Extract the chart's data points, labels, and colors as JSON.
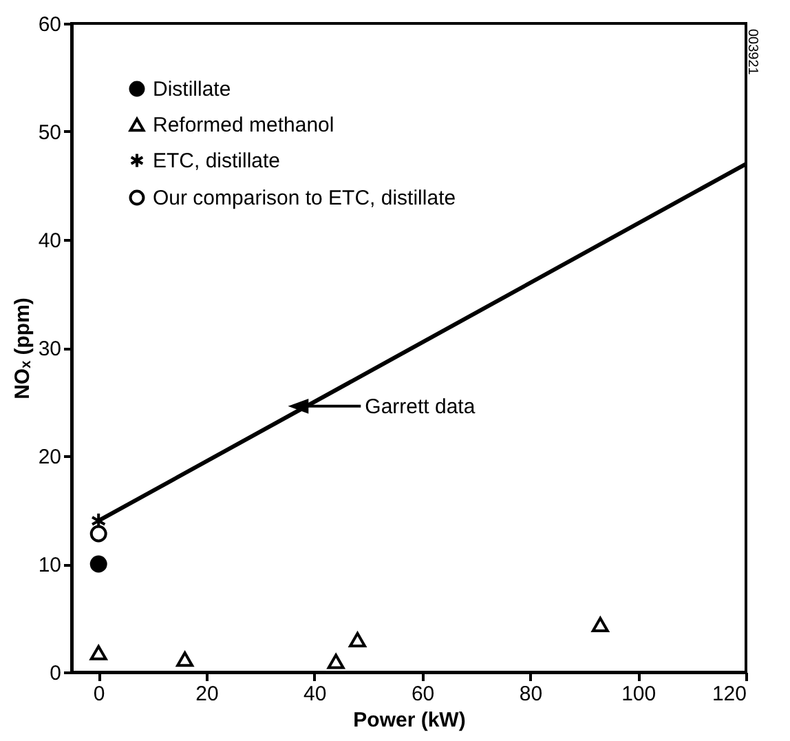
{
  "chart_data": {
    "type": "scatter",
    "xlabel": "Power (kW)",
    "ylabel": "NOₓ (ppm)",
    "xlim": [
      -5,
      120
    ],
    "xticks": [
      0,
      20,
      40,
      60,
      80,
      100,
      120
    ],
    "ylim": [
      0,
      60
    ],
    "yticks": [
      0,
      10,
      20,
      30,
      40,
      50,
      60
    ],
    "grid": false,
    "legend": "top left",
    "series": [
      {
        "type": "line",
        "color": "#000000",
        "x": [
          0,
          120
        ],
        "values": [
          14,
          47
        ],
        "marker": "none"
      },
      {
        "name": "Distillate",
        "color": "#000000",
        "marker": "circle",
        "x": [
          0
        ],
        "values": [
          10
        ]
      },
      {
        "name": "Reformed methanol",
        "color": "#000000",
        "marker": "triangle",
        "x": [
          0,
          16,
          44,
          48,
          93
        ],
        "values": [
          1.8,
          1.2,
          1.0,
          3.0,
          4.4
        ]
      },
      {
        "name": "ETC, distillate",
        "color": "#000000",
        "marker": "cross",
        "x": [
          0
        ],
        "values": [
          14
        ]
      },
      {
        "name": "Our comparison to ETC, distillate",
        "color": "#000000",
        "marker": "circle",
        "x": [
          0
        ],
        "values": [
          12.8
        ]
      }
    ],
    "annotations": [
      "Garrett data",
      "003921"
    ]
  }
}
